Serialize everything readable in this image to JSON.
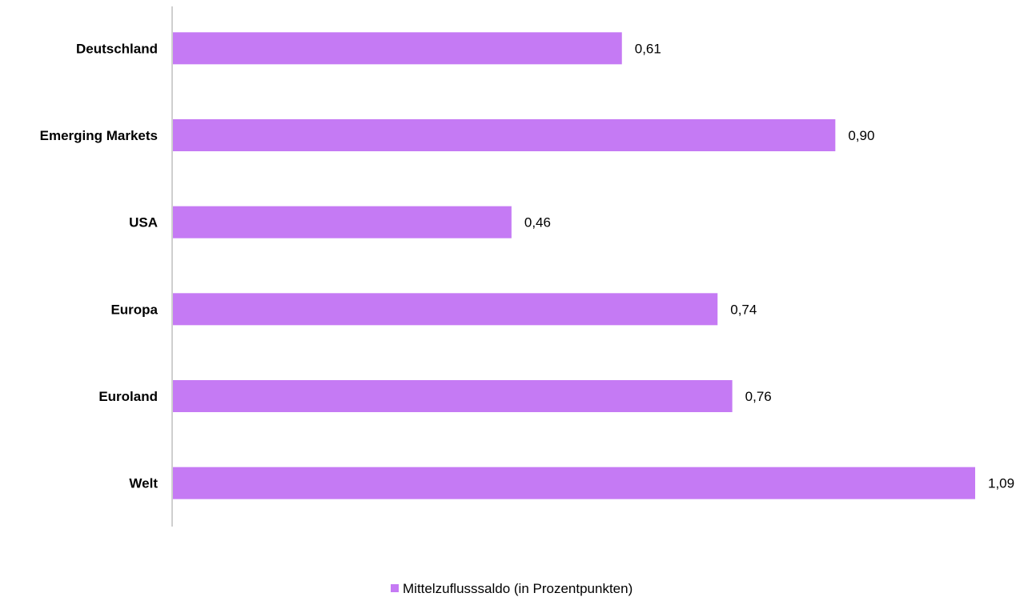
{
  "chart_data": {
    "type": "bar",
    "orientation": "horizontal",
    "categories": [
      "Deutschland",
      "Emerging Markets",
      "USA",
      "Europa",
      "Euroland",
      "Welt"
    ],
    "series": [
      {
        "name": "Mittelzuflusssaldo (in Prozentpunkten)",
        "values": [
          0.61,
          0.9,
          0.46,
          0.74,
          0.76,
          1.09
        ],
        "value_labels": [
          "0,61",
          "0,90",
          "0,46",
          "0,74",
          "0,76",
          "1,09"
        ],
        "color": "#c57af4"
      }
    ],
    "xlim": [
      0,
      1.09
    ],
    "grid": false,
    "legend": "bottom-center"
  }
}
